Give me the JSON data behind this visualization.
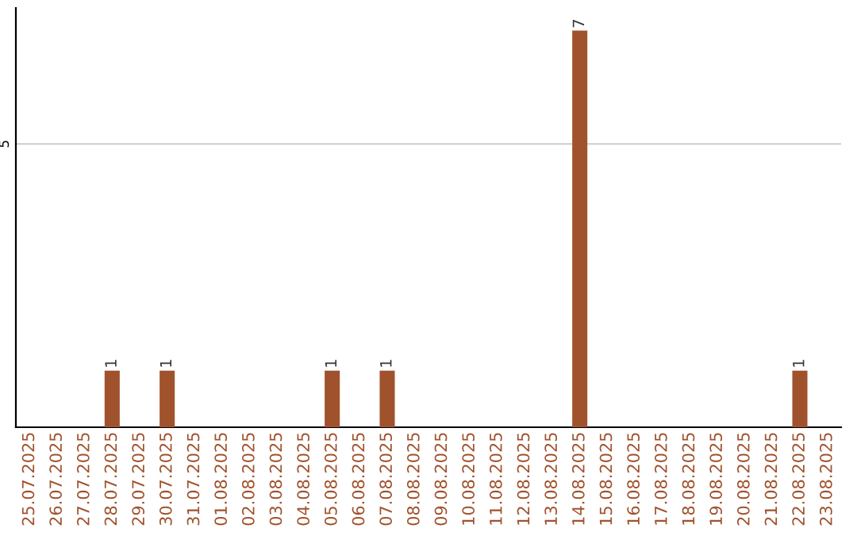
{
  "chart_data": {
    "type": "bar",
    "categories": [
      "25.07.2025",
      "26.07.2025",
      "27.07.2025",
      "28.07.2025",
      "29.07.2025",
      "30.07.2025",
      "31.07.2025",
      "01.08.2025",
      "02.08.2025",
      "03.08.2025",
      "04.08.2025",
      "05.08.2025",
      "06.08.2025",
      "07.08.2025",
      "08.08.2025",
      "09.08.2025",
      "10.08.2025",
      "11.08.2025",
      "12.08.2025",
      "13.08.2025",
      "14.08.2025",
      "15.08.2025",
      "16.08.2025",
      "17.08.2025",
      "18.08.2025",
      "19.08.2025",
      "20.08.2025",
      "21.08.2025",
      "22.08.2025",
      "23.08.2025"
    ],
    "values": [
      0,
      0,
      0,
      1,
      0,
      1,
      0,
      0,
      0,
      0,
      0,
      1,
      0,
      1,
      0,
      0,
      0,
      0,
      0,
      0,
      7,
      0,
      0,
      0,
      0,
      0,
      0,
      0,
      1,
      0
    ],
    "value_labels": [
      null,
      null,
      null,
      "1",
      null,
      "1",
      null,
      null,
      null,
      null,
      null,
      "1",
      null,
      "1",
      null,
      null,
      null,
      null,
      null,
      null,
      "7",
      null,
      null,
      null,
      null,
      null,
      null,
      null,
      "1",
      null
    ],
    "color": "#a0522d",
    "ylim": [
      0,
      7.4
    ],
    "yticks": [
      5
    ],
    "grid": "y",
    "legend": false
  }
}
